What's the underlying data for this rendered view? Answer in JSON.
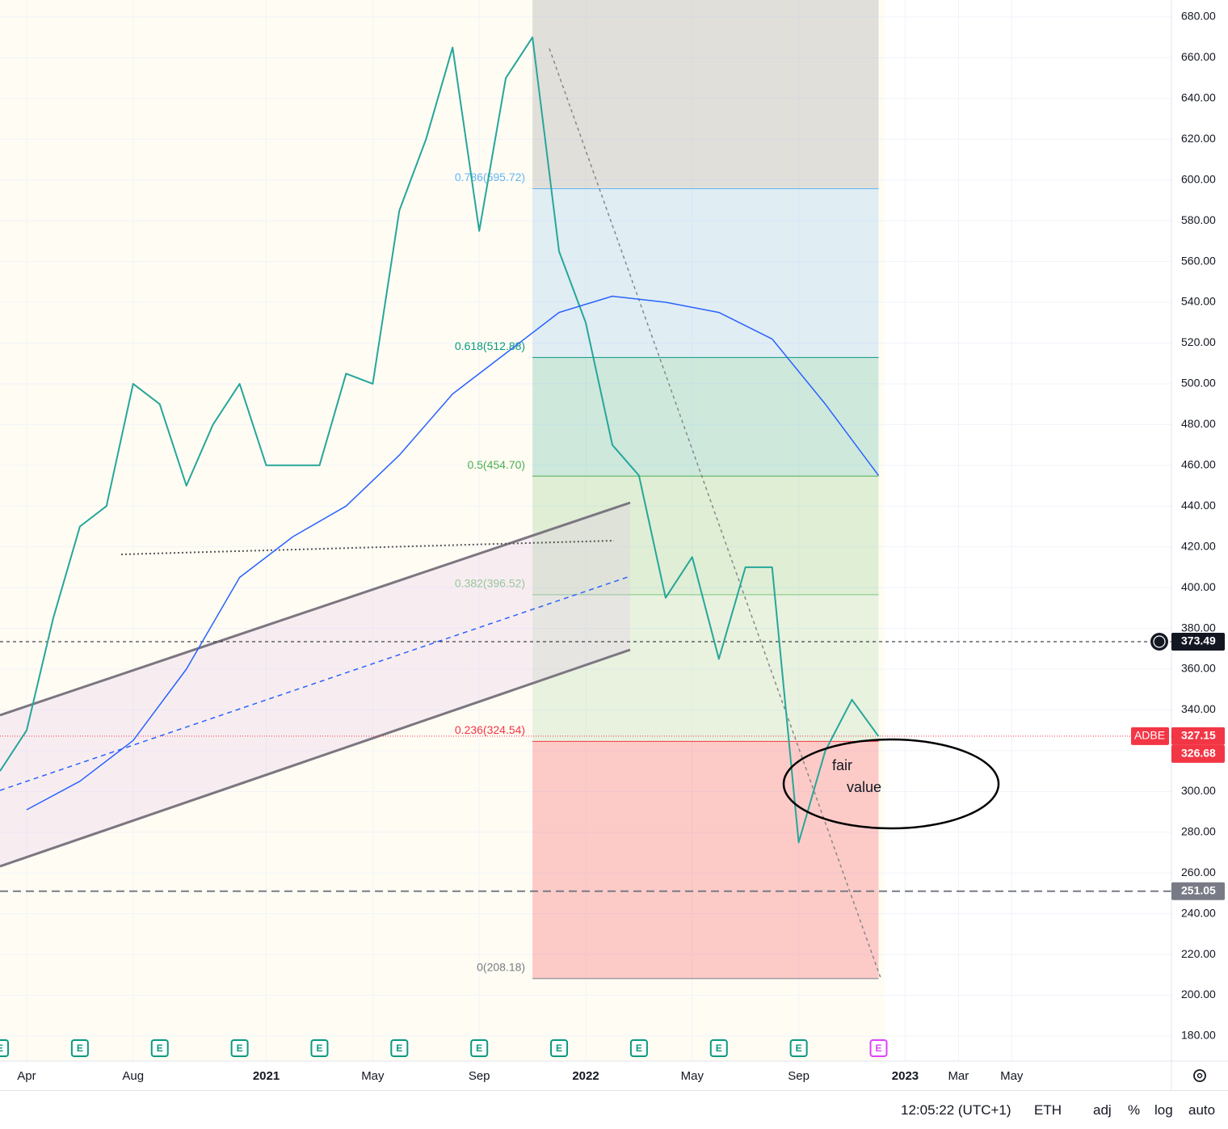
{
  "chart_data": {
    "type": "line",
    "symbol": "ADBE",
    "xlim": [
      "2020-03",
      "2023-11"
    ],
    "xticks": [
      {
        "value": "2020-04",
        "label": "Apr"
      },
      {
        "value": "2020-08",
        "label": "Aug"
      },
      {
        "value": "2021-01",
        "label": "2021"
      },
      {
        "value": "2021-05",
        "label": "May"
      },
      {
        "value": "2021-09",
        "label": "Sep"
      },
      {
        "value": "2022-01",
        "label": "2022"
      },
      {
        "value": "2022-05",
        "label": "May"
      },
      {
        "value": "2022-09",
        "label": "Sep"
      },
      {
        "value": "2023-01",
        "label": "2023"
      },
      {
        "value": "2023-03",
        "label": "Mar"
      },
      {
        "value": "2023-05",
        "label": "May"
      }
    ],
    "ylim": [
      167.7,
      688.3
    ],
    "yticks": [
      {
        "value": 180,
        "label": "180.00"
      },
      {
        "value": 200,
        "label": "200.00"
      },
      {
        "value": 220,
        "label": "220.00"
      },
      {
        "value": 240,
        "label": "240.00"
      },
      {
        "value": 260,
        "label": "260.00"
      },
      {
        "value": 280,
        "label": "280.00"
      },
      {
        "value": 300,
        "label": "300.00"
      },
      {
        "value": 320,
        "label": "320.00"
      },
      {
        "value": 340,
        "label": "340.00"
      },
      {
        "value": 360,
        "label": "360.00"
      },
      {
        "value": 380,
        "label": "380.00"
      },
      {
        "value": 400,
        "label": "400.00"
      },
      {
        "value": 420,
        "label": "420.00"
      },
      {
        "value": 440,
        "label": "440.00"
      },
      {
        "value": 460,
        "label": "460.00"
      },
      {
        "value": 480,
        "label": "480.00"
      },
      {
        "value": 500,
        "label": "500.00"
      },
      {
        "value": 520,
        "label": "520.00"
      },
      {
        "value": 540,
        "label": "540.00"
      },
      {
        "value": 560,
        "label": "560.00"
      },
      {
        "value": 580,
        "label": "580.00"
      },
      {
        "value": 600,
        "label": "600.00"
      },
      {
        "value": 620,
        "label": "620.00"
      },
      {
        "value": 640,
        "label": "640.00"
      },
      {
        "value": 660,
        "label": "660.00"
      },
      {
        "value": 680,
        "label": "680.00"
      }
    ],
    "series": [
      {
        "name": "ADBE",
        "color": "#26a69a",
        "x": [
          "2020-03",
          "2020-04",
          "2020-05",
          "2020-06",
          "2020-07",
          "2020-08",
          "2020-09",
          "2020-10",
          "2020-11",
          "2020-12",
          "2021-01",
          "2021-02",
          "2021-03",
          "2021-04",
          "2021-05",
          "2021-06",
          "2021-07",
          "2021-08",
          "2021-09",
          "2021-10",
          "2021-11",
          "2021-12",
          "2022-01",
          "2022-02",
          "2022-03",
          "2022-04",
          "2022-05",
          "2022-06",
          "2022-07",
          "2022-08",
          "2022-09",
          "2022-10",
          "2022-11",
          "2022-12"
        ],
        "values": [
          310,
          330,
          385,
          430,
          440,
          500,
          490,
          450,
          480,
          500,
          460,
          460,
          460,
          505,
          500,
          585,
          620,
          665,
          575,
          650,
          670,
          565,
          530,
          470,
          455,
          395,
          415,
          365,
          410,
          410,
          275,
          320,
          345,
          327
        ]
      },
      {
        "name": "MA",
        "color": "#2962ff",
        "x": [
          "2020-04",
          "2020-06",
          "2020-08",
          "2020-10",
          "2020-12",
          "2021-02",
          "2021-04",
          "2021-06",
          "2021-08",
          "2021-10",
          "2021-12",
          "2022-02",
          "2022-04",
          "2022-06",
          "2022-08",
          "2022-10",
          "2022-12"
        ],
        "values": [
          291,
          305,
          325,
          360,
          405,
          425,
          440,
          465,
          495,
          515,
          535,
          543,
          540,
          535,
          522,
          490,
          455
        ]
      }
    ],
    "fib": {
      "x": [
        "2021-11",
        "2022-12"
      ],
      "levels": [
        {
          "label": "0.786(595.72)",
          "value": 595.72,
          "color": "#64b5f6",
          "fill": "rgba(120,123,134,0.22)"
        },
        {
          "label": "0.618(512.88)",
          "value": 512.88,
          "color": "#089981",
          "fill": "rgba(100,181,246,0.2)"
        },
        {
          "label": "0.5(454.70)",
          "value": 454.7,
          "color": "#4caf50",
          "fill": "rgba(8,153,129,0.2)"
        },
        {
          "label": "0.382(396.52)",
          "value": 396.52,
          "color": "#81c784",
          "fill": "rgba(76,175,80,0.18)"
        },
        {
          "label": "0.236(324.54)",
          "value": 324.54,
          "color": "#f23645",
          "fill": "rgba(129,199,132,0.18)"
        },
        {
          "label": "0(208.18)",
          "value": 208.18,
          "color": "#787b86",
          "fill": "rgba(242,54,69,0.25)"
        }
      ]
    },
    "price_lines": [
      {
        "value": 373.49,
        "color": "#131722",
        "style": "dashed"
      },
      {
        "value": 327.15,
        "color": "#f23645",
        "style": "dotted",
        "tag": "ADBE"
      },
      {
        "value": 326.68,
        "color": "#f23645",
        "style": "none"
      },
      {
        "value": 251.05,
        "color": "#787b86",
        "style": "thick-dashed"
      }
    ],
    "annotation": [
      "fair",
      "value"
    ],
    "earnings": {
      "label": "E",
      "color": "#089981",
      "upcoming_color": "#e040fb",
      "dates": [
        "2020-03",
        "2020-06",
        "2020-09",
        "2020-12",
        "2021-03",
        "2021-06",
        "2021-09",
        "2021-12",
        "2022-03",
        "2022-06",
        "2022-09"
      ],
      "upcoming": [
        "2022-12"
      ]
    }
  },
  "status_bar": {
    "time": "12:05:22 (UTC+1)",
    "session": "ETH",
    "buttons": [
      "adj",
      "%",
      "log",
      "auto"
    ]
  }
}
